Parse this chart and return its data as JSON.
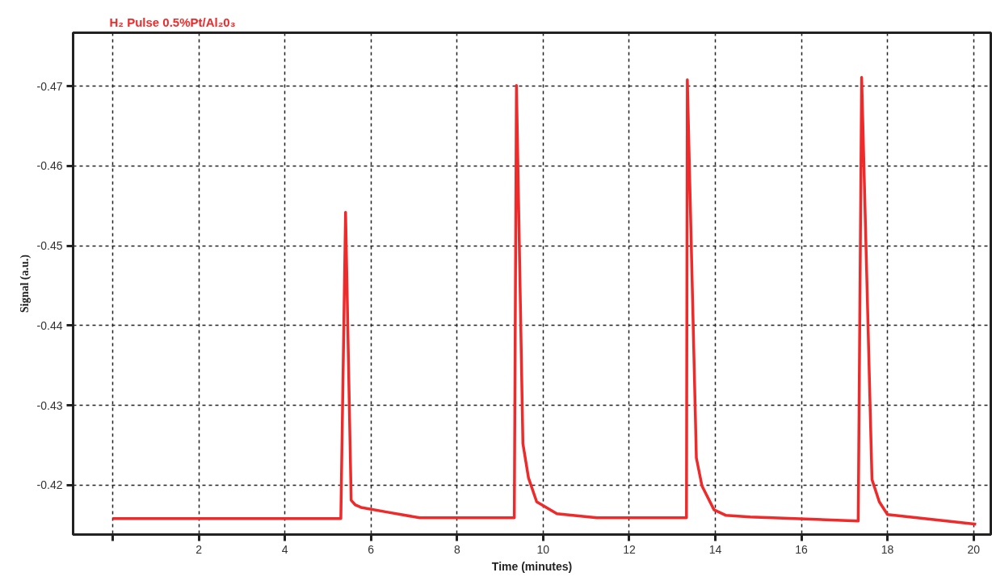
{
  "chart_data": {
    "type": "line",
    "title": "H₂ Pulse 0.5%Pt/Al₂0₃",
    "xlabel": "Time (minutes)",
    "ylabel": "Signal (a.u.)",
    "xlim": [
      -0.92,
      20.4
    ],
    "ylim": [
      -0.4138,
      -0.4767
    ],
    "xticks": [
      {
        "value": 0,
        "label": null
      },
      2,
      4,
      6,
      8,
      10,
      12,
      14,
      16,
      18,
      20
    ],
    "yticks": [
      -0.42,
      -0.43,
      -0.44,
      -0.45,
      -0.46,
      -0.47
    ],
    "grid": true,
    "line_style": "solid",
    "series": [
      {
        "color": "#ee2a2a",
        "x": [
          0,
          5.3,
          5.41,
          5.54,
          5.64,
          5.77,
          6.39,
          7.13,
          9.33,
          9.38,
          9.53,
          9.66,
          9.85,
          10.32,
          11.25,
          13.33,
          13.35,
          13.56,
          13.69,
          13.97,
          14.25,
          14.81,
          17.32,
          17.4,
          17.64,
          17.81,
          18.0,
          20.06
        ],
        "values": [
          -0.4158,
          -0.4158,
          -0.4542,
          -0.4181,
          -0.4175,
          -0.4172,
          -0.4166,
          -0.4159,
          -0.4159,
          -0.4701,
          -0.4252,
          -0.4209,
          -0.4179,
          -0.4164,
          -0.4159,
          -0.4159,
          -0.4708,
          -0.4234,
          -0.4199,
          -0.4169,
          -0.4162,
          -0.416,
          -0.4155,
          -0.4711,
          -0.4207,
          -0.4179,
          -0.4163,
          -0.4151
        ]
      }
    ]
  }
}
